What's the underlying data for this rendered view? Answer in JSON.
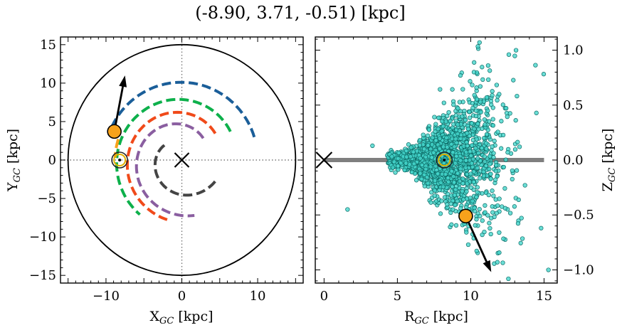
{
  "chart_data": [
    {
      "type": "scatter",
      "title": "(-8.90, 3.71, -0.51) [kpc]",
      "panel": "left",
      "xlabel": "X_GC [kpc]",
      "ylabel": "Y_GC [kpc]",
      "xlim": [
        -16,
        16
      ],
      "ylim": [
        -16,
        16
      ],
      "xticks": [
        -10,
        0,
        10
      ],
      "yticks": [
        -15,
        -10,
        -5,
        0,
        5,
        10,
        15
      ],
      "tick_labels_x": [
        "−10",
        "0",
        "10"
      ],
      "tick_labels_y": [
        "−15",
        "−10",
        "−5",
        "0",
        "5",
        "10",
        "15"
      ],
      "boundary_circle_radius": 15,
      "galactic_center": [
        0,
        0
      ],
      "sun": [
        -8.2,
        0
      ],
      "object": [
        -8.9,
        3.71
      ],
      "velocity_arrow": {
        "from": [
          -8.9,
          3.71
        ],
        "to": [
          -7.5,
          11.0
        ]
      },
      "arms": [
        {
          "color": "#1a5e99",
          "radius": 10.2,
          "r_end": 10.0,
          "theta_start": 155,
          "theta_end": 15,
          "width": 4
        },
        {
          "color": "#0db04b",
          "radius": 7.4,
          "r_end": 9.0,
          "theta_start": 30,
          "theta_end": 232,
          "width": 4
        },
        {
          "color": "#f04a1a",
          "radius": 5.6,
          "r_end": 8.0,
          "theta_start": 38,
          "theta_end": 256,
          "width": 4
        },
        {
          "color": "#8a5ea0",
          "radius": 4.0,
          "r_end": 7.4,
          "theta_start": 45,
          "theta_end": 283,
          "width": 4
        },
        {
          "color": "#444444",
          "radius": 3.0,
          "r_end": 5.2,
          "theta_start": 140,
          "theta_end": 328,
          "width": 4
        },
        {
          "color": "#f7a21b",
          "radius": 8.8,
          "r_end": 8.8,
          "theta_start": 162,
          "theta_end": 178,
          "width": 4
        }
      ],
      "colors": {
        "object": "#f7a21b",
        "sun_ring": "#3a3a00",
        "sun_inner": "#e0b000",
        "circle": "#000000",
        "guide": "#777777"
      }
    },
    {
      "type": "scatter",
      "panel": "right",
      "xlabel": "R_GC [kpc]",
      "ylabel": "Z_GC [kpc]",
      "xlim": [
        -0.6,
        15.9
      ],
      "ylim": [
        -1.12,
        1.12
      ],
      "xticks": [
        0,
        5,
        10,
        15
      ],
      "yticks": [
        -1.0,
        -0.5,
        0.0,
        0.5,
        1.0
      ],
      "tick_labels_x": [
        "0",
        "5",
        "10",
        "15"
      ],
      "tick_labels_y": [
        "−1.0",
        "−0.5",
        "0.0",
        "0.5",
        "1.0"
      ],
      "disk_line": {
        "from": [
          0,
          0
        ],
        "to": [
          15,
          0
        ],
        "color": "#7f7f7f"
      },
      "galactic_center": [
        0,
        0
      ],
      "sun": [
        8.2,
        0
      ],
      "object": [
        9.66,
        -0.51
      ],
      "velocity_arrow": {
        "from": [
          9.66,
          -0.51
        ],
        "to": [
          11.4,
          -1.02
        ]
      },
      "points_description": "approximately 1800 stars",
      "colors": {
        "points_fill": "#45d6cc",
        "points_edge": "#0d6b66",
        "object": "#f7a21b"
      }
    }
  ]
}
